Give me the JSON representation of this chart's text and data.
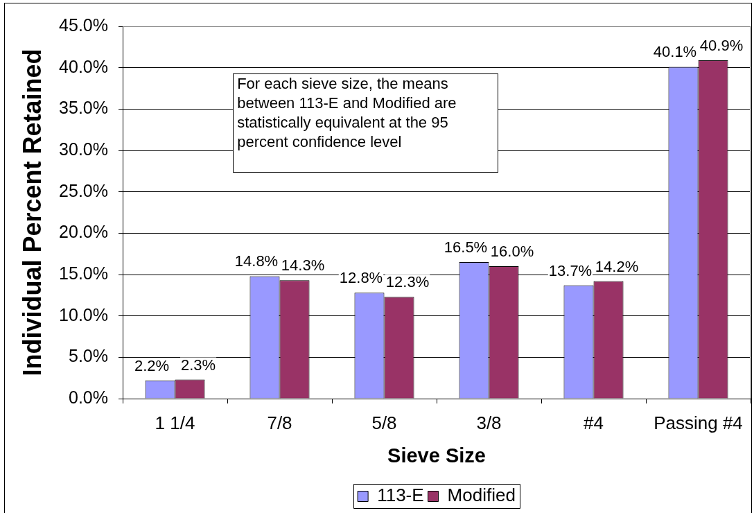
{
  "chart_data": {
    "type": "bar",
    "xlabel": "Sieve Size",
    "ylabel": "Individual Percent Retained",
    "categories": [
      "1 1/4",
      "7/8",
      "5/8",
      "3/8",
      "#4",
      "Passing #4"
    ],
    "series": [
      {
        "name": "113-E",
        "color": "#9999ff",
        "values": [
          2.2,
          14.8,
          12.8,
          16.5,
          13.7,
          40.1
        ],
        "value_labels": [
          "2.2%",
          "14.8%",
          "12.8%",
          "16.5%",
          "13.7%",
          "40.1%"
        ]
      },
      {
        "name": "Modified",
        "color": "#993366",
        "values": [
          2.3,
          14.3,
          12.3,
          16.0,
          14.2,
          40.9
        ],
        "value_labels": [
          "2.3%",
          "14.3%",
          "12.3%",
          "16.0%",
          "14.2%",
          "40.9%"
        ]
      }
    ],
    "ylim": [
      0,
      45
    ],
    "yticks": [
      {
        "value": 0,
        "label": "0.0%"
      },
      {
        "value": 5,
        "label": "5.0%"
      },
      {
        "value": 10,
        "label": "10.0%"
      },
      {
        "value": 15,
        "label": "15.0%"
      },
      {
        "value": 20,
        "label": "20.0%"
      },
      {
        "value": 25,
        "label": "25.0%"
      },
      {
        "value": 30,
        "label": "30.0%"
      },
      {
        "value": 35,
        "label": "35.0%"
      },
      {
        "value": 40,
        "label": "40.0%"
      },
      {
        "value": 45,
        "label": "45.0%"
      }
    ],
    "grid": "y",
    "legend": "bottom",
    "annotations": [
      "For each sieve size, the means between 113-E and Modified are statistically equivalent at the 95 percent confidence level"
    ]
  }
}
